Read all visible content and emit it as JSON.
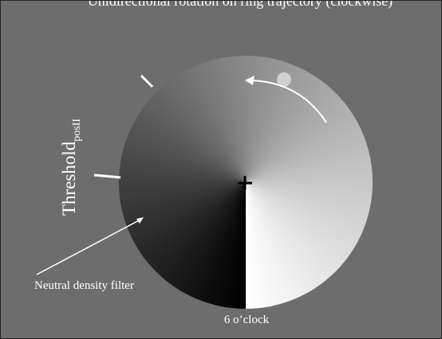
{
  "title": "Unidirectional rotation on ring trajectory (clockwise)",
  "threshold_label": {
    "main": "Threshold",
    "subscript": "posII"
  },
  "filter_label": "Neutral density filter",
  "bottom_label": "6 o’clock"
}
